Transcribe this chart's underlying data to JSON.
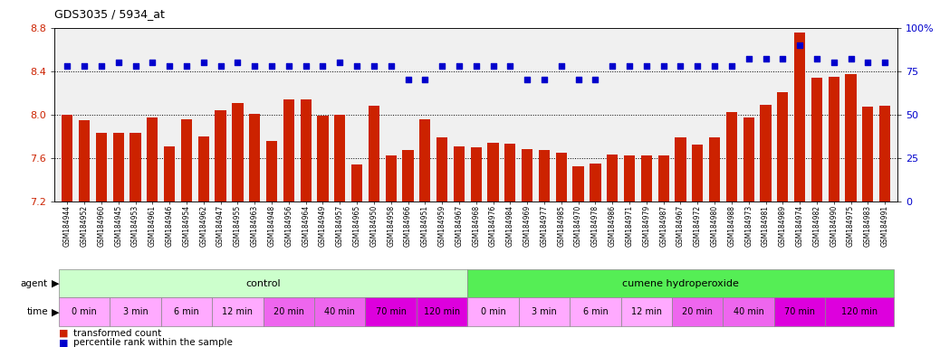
{
  "title": "GDS3035 / 5934_at",
  "ylim_left": [
    7.2,
    8.8
  ],
  "ylim_right": [
    0,
    100
  ],
  "yticks_left": [
    7.2,
    7.6,
    8.0,
    8.4,
    8.8
  ],
  "yticks_right": [
    0,
    25,
    50,
    75,
    100
  ],
  "bar_color": "#cc2200",
  "dot_color": "#0000cc",
  "samples": [
    "GSM184944",
    "GSM184952",
    "GSM184960",
    "GSM184945",
    "GSM184953",
    "GSM184961",
    "GSM184946",
    "GSM184954",
    "GSM184962",
    "GSM184947",
    "GSM184955",
    "GSM184963",
    "GSM184948",
    "GSM184956",
    "GSM184964",
    "GSM184949",
    "GSM184957",
    "GSM184965",
    "GSM184950",
    "GSM184958",
    "GSM184966",
    "GSM184951",
    "GSM184959",
    "GSM184967",
    "GSM184968",
    "GSM184976",
    "GSM184984",
    "GSM184969",
    "GSM184977",
    "GSM184985",
    "GSM184970",
    "GSM184978",
    "GSM184986",
    "GSM184971",
    "GSM184979",
    "GSM184987",
    "GSM184967",
    "GSM184972",
    "GSM184980",
    "GSM184988",
    "GSM184973",
    "GSM184981",
    "GSM184989",
    "GSM184974",
    "GSM184982",
    "GSM184990",
    "GSM184975",
    "GSM184983",
    "GSM184991"
  ],
  "bar_values": [
    8.0,
    7.95,
    7.83,
    7.83,
    7.83,
    7.97,
    7.71,
    7.96,
    7.8,
    8.04,
    8.11,
    8.01,
    7.76,
    8.14,
    8.14,
    7.99,
    8.0,
    7.54,
    8.08,
    7.62,
    7.67,
    7.96,
    7.79,
    7.71,
    7.7,
    7.74,
    7.73,
    7.68,
    7.67,
    7.65,
    7.52,
    7.55,
    7.63,
    7.62,
    7.62,
    7.62,
    7.79,
    7.72,
    7.79,
    8.02,
    7.97,
    8.09,
    8.21,
    8.76,
    8.34,
    8.35,
    8.37,
    8.07,
    8.08
  ],
  "percentile_values": [
    78,
    78,
    78,
    80,
    78,
    80,
    78,
    78,
    80,
    78,
    80,
    78,
    78,
    78,
    78,
    78,
    80,
    78,
    78,
    78,
    70,
    70,
    78,
    78,
    78,
    78,
    78,
    70,
    70,
    78,
    70,
    70,
    78,
    78,
    78,
    78,
    78,
    78,
    78,
    78,
    82,
    82,
    82,
    90,
    82,
    80,
    82,
    80,
    80
  ],
  "agent_groups": [
    {
      "label": "control",
      "start": 0,
      "end": 23,
      "color": "#ccffcc"
    },
    {
      "label": "cumene hydroperoxide",
      "start": 24,
      "end": 48,
      "color": "#55ee55"
    }
  ],
  "time_groups": [
    {
      "label": "0 min",
      "start": 0,
      "end": 2,
      "color": "#ffaaff"
    },
    {
      "label": "3 min",
      "start": 3,
      "end": 5,
      "color": "#ffaaff"
    },
    {
      "label": "6 min",
      "start": 6,
      "end": 8,
      "color": "#ffaaff"
    },
    {
      "label": "12 min",
      "start": 9,
      "end": 11,
      "color": "#ffaaff"
    },
    {
      "label": "20 min",
      "start": 12,
      "end": 14,
      "color": "#ee66ee"
    },
    {
      "label": "40 min",
      "start": 15,
      "end": 17,
      "color": "#ee66ee"
    },
    {
      "label": "70 min",
      "start": 18,
      "end": 20,
      "color": "#dd00dd"
    },
    {
      "label": "120 min",
      "start": 21,
      "end": 23,
      "color": "#dd00dd"
    },
    {
      "label": "0 min",
      "start": 24,
      "end": 26,
      "color": "#ffaaff"
    },
    {
      "label": "3 min",
      "start": 27,
      "end": 29,
      "color": "#ffaaff"
    },
    {
      "label": "6 min",
      "start": 30,
      "end": 32,
      "color": "#ffaaff"
    },
    {
      "label": "12 min",
      "start": 33,
      "end": 35,
      "color": "#ffaaff"
    },
    {
      "label": "20 min",
      "start": 36,
      "end": 38,
      "color": "#ee66ee"
    },
    {
      "label": "40 min",
      "start": 39,
      "end": 41,
      "color": "#ee66ee"
    },
    {
      "label": "70 min",
      "start": 42,
      "end": 44,
      "color": "#dd00dd"
    },
    {
      "label": "120 min",
      "start": 45,
      "end": 48,
      "color": "#dd00dd"
    }
  ],
  "legend_bar_label": "transformed count",
  "legend_dot_label": "percentile rank within the sample",
  "background_color": "#ffffff",
  "plot_bg_color": "#f0f0f0",
  "dotted_hlines": [
    7.6,
    8.0,
    8.4
  ],
  "fig_width": 10.38,
  "fig_height": 3.84,
  "dpi": 100
}
